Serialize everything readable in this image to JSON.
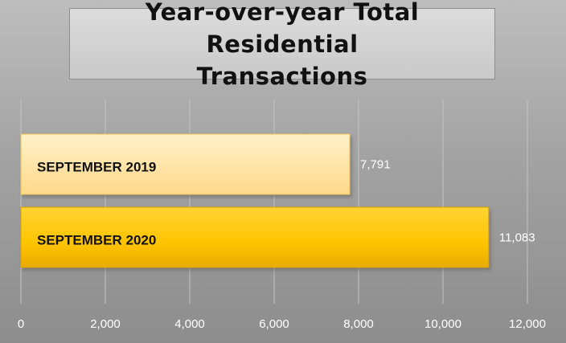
{
  "chart_data": {
    "type": "bar",
    "orientation": "horizontal",
    "title": "Year-over-year Total Residential Transactions",
    "categories": [
      "SEPTEMBER 2019",
      "SEPTEMBER 2020"
    ],
    "values": [
      7791,
      11083
    ],
    "value_labels": [
      "7,791",
      "11,083"
    ],
    "xlim": [
      0,
      12000
    ],
    "x_ticks": [
      0,
      2000,
      4000,
      6000,
      8000,
      10000,
      12000
    ],
    "x_tick_labels": [
      "0",
      "2,000",
      "4,000",
      "6,000",
      "8,000",
      "10,000",
      "12,000"
    ],
    "grid": true,
    "legend": "none",
    "colors": {
      "bar_2019": "#ffd98a",
      "bar_2020": "#ffc400",
      "bar_2020_dark": "#e0a800",
      "grid": "#c4c4c4",
      "labels": "#ffffff"
    }
  }
}
